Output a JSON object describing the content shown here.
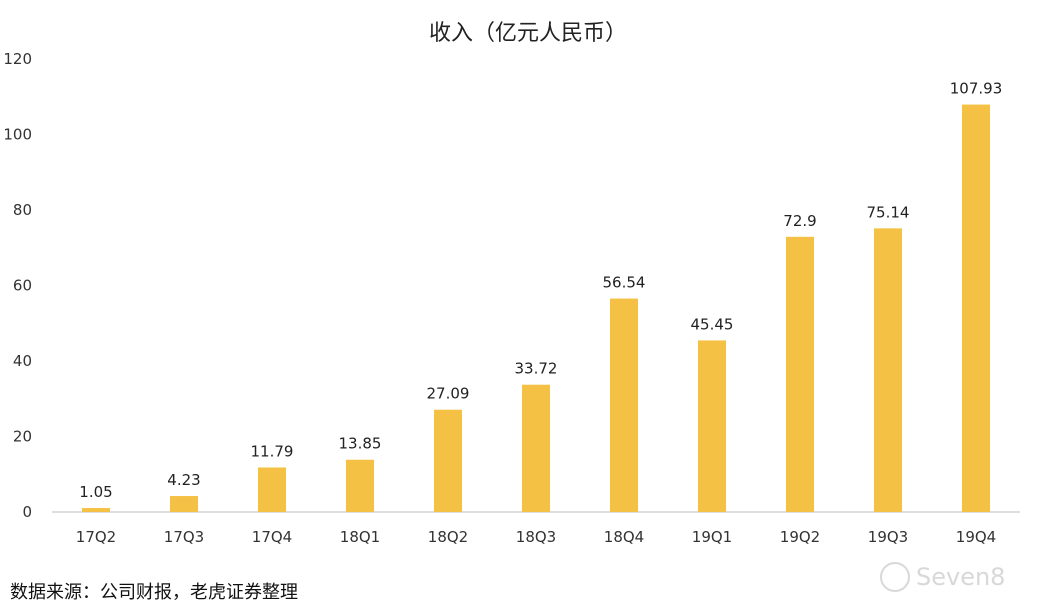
{
  "chart_data": {
    "type": "bar",
    "title": "收入（亿元人民币）",
    "categories": [
      "17Q2",
      "17Q3",
      "17Q4",
      "18Q1",
      "18Q2",
      "18Q3",
      "18Q4",
      "19Q1",
      "19Q2",
      "19Q3",
      "19Q4"
    ],
    "values": [
      1.05,
      4.23,
      11.79,
      13.85,
      27.09,
      33.72,
      56.54,
      45.45,
      72.9,
      75.14,
      107.93
    ],
    "value_labels": [
      "1.05",
      "4.23",
      "11.79",
      "13.85",
      "27.09",
      "33.72",
      "56.54",
      "45.45",
      "72.9",
      "75.14",
      "107.93"
    ],
    "ylim": [
      0,
      120
    ],
    "yticks": [
      "0",
      "20",
      "40",
      "60",
      "80",
      "100",
      "120"
    ],
    "grid": false,
    "bar_color": "#F5C144"
  },
  "source_text": "数据来源：公司财报，老虎证券整理",
  "watermark_text": "Seven8"
}
